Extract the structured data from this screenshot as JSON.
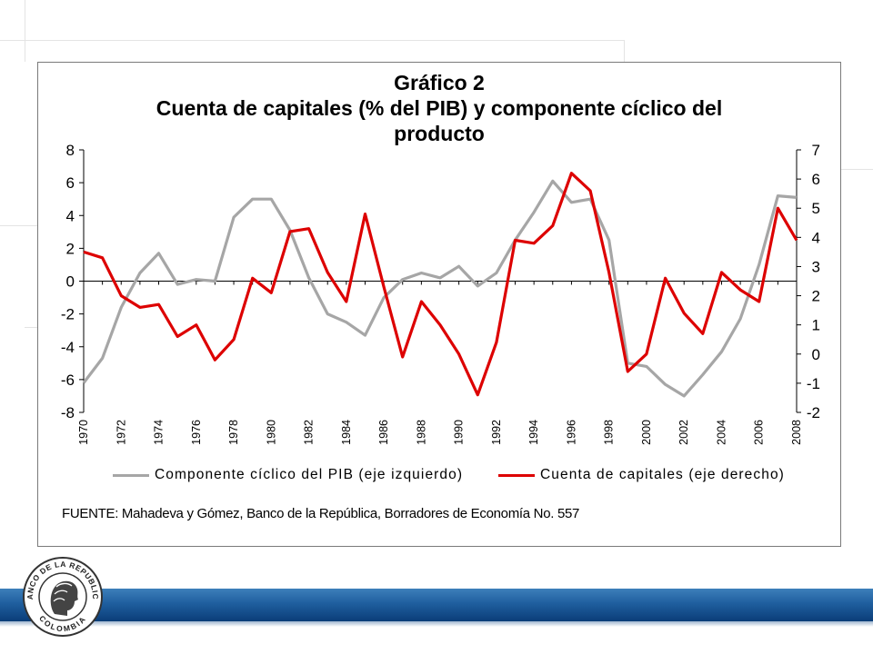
{
  "title_line1": "Gráfico 2",
  "title_line2": "Cuenta de capitales (%  del PIB) y componente cíclico del",
  "title_line3": "producto",
  "source": "FUENTE: Mahadeva y Gómez, Banco de la República, Borradores de Economía No. 557",
  "seal": {
    "top_text": "BANCO DE LA REPUBLICA",
    "bottom_text": "COLOMBIA"
  },
  "colors": {
    "grey_series": "#a6a6a6",
    "red_series": "#dd0000",
    "bar": "#1f5f9f"
  },
  "chart_data": {
    "type": "line",
    "x": [
      1970,
      1971,
      1972,
      1973,
      1974,
      1975,
      1976,
      1977,
      1978,
      1979,
      1980,
      1981,
      1982,
      1983,
      1984,
      1985,
      1986,
      1987,
      1988,
      1989,
      1990,
      1991,
      1992,
      1993,
      1994,
      1995,
      1996,
      1997,
      1998,
      1999,
      2000,
      2001,
      2002,
      2003,
      2004,
      2005,
      2006,
      2007,
      2008
    ],
    "x_tick_labels": [
      "1970",
      "1972",
      "1974",
      "1976",
      "1978",
      "1980",
      "1982",
      "1984",
      "1986",
      "1988",
      "1990",
      "1992",
      "1994",
      "1996",
      "1998",
      "2000",
      "2002",
      "2004",
      "2006",
      "2008"
    ],
    "left_axis": {
      "ylim": [
        -8,
        8
      ],
      "ticks": [
        "8",
        "6",
        "4",
        "2",
        "0",
        "-2",
        "-4",
        "-6",
        "-8"
      ]
    },
    "right_axis": {
      "ylim": [
        -2,
        7
      ],
      "ticks": [
        "7",
        "6",
        "5",
        "4",
        "3",
        "2",
        "1",
        "0",
        "-1",
        "-2"
      ]
    },
    "series": [
      {
        "name": "Componente cíclico del PIB (eje izquierdo)",
        "axis": "left",
        "color": "#a6a6a6",
        "values": [
          -6.2,
          -4.7,
          -1.6,
          0.5,
          1.7,
          -0.2,
          0.1,
          0.0,
          3.9,
          5.0,
          5.0,
          3.1,
          0.2,
          -2.0,
          -2.5,
          -3.3,
          -1.0,
          0.1,
          0.5,
          0.2,
          0.9,
          -0.3,
          0.5,
          2.5,
          4.2,
          6.1,
          4.8,
          5.0,
          2.5,
          -5.0,
          -5.2,
          -6.3,
          -7.0,
          -5.7,
          -4.3,
          -2.3,
          1.0,
          5.2,
          5.1
        ]
      },
      {
        "name": "Cuenta de capitales (eje derecho)",
        "axis": "right",
        "color": "#dd0000",
        "values": [
          3.5,
          3.3,
          2.0,
          1.6,
          1.7,
          0.6,
          1.0,
          -0.2,
          0.5,
          2.6,
          2.1,
          4.2,
          4.3,
          2.8,
          1.8,
          4.8,
          2.3,
          -0.1,
          1.8,
          1.0,
          0.0,
          -1.4,
          0.4,
          3.9,
          3.8,
          4.4,
          6.2,
          5.6,
          2.8,
          -0.6,
          0.0,
          2.6,
          1.4,
          0.7,
          2.8,
          2.2,
          1.8,
          5.0,
          3.9
        ]
      }
    ],
    "grid": false,
    "legend_position": "bottom"
  }
}
